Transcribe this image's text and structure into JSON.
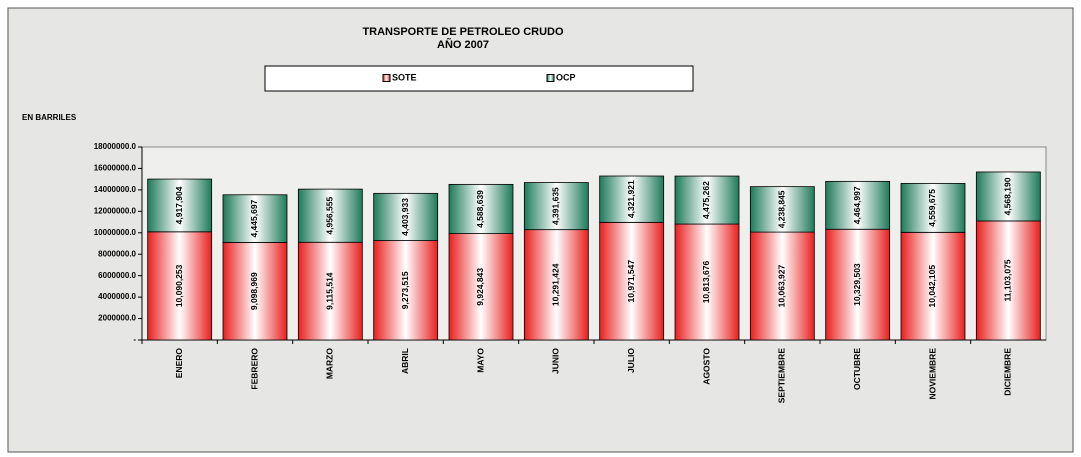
{
  "chart_data": {
    "type": "stacked_bar",
    "title": [
      "TRANSPORTE DE  PETROLEO CRUDO",
      "AÑO 2007"
    ],
    "y_label": "EN BARRILES",
    "categories": [
      "ENERO",
      "FEBRERO",
      "MARZO",
      "ABRIL",
      "MAYO",
      "JUNIO",
      "JULIO",
      "AGOSTO",
      "SEPTIEMBRE",
      "OCTUBRE",
      "NOVIEMBRE",
      "DICIEMBRE"
    ],
    "series": [
      {
        "name": "SOTE",
        "color": "#e8201e",
        "values": [
          10090253,
          9098969,
          9115514,
          9273515,
          9924843,
          10291424,
          10971547,
          10813676,
          10063927,
          10329503,
          10042105,
          11103075
        ],
        "value_labels": [
          "10,090,253",
          "9,098,969",
          "9,115,514",
          "9,273,515",
          "9,924,843",
          "10,291,424",
          "10,971,547",
          "10,813,676",
          "10,063,927",
          "10,329,503",
          "10,042,105",
          "11,103,075"
        ]
      },
      {
        "name": "OCP",
        "color": "#1e7a5a",
        "values": [
          4917904,
          4445697,
          4956555,
          4403933,
          4588639,
          4391635,
          4321921,
          4475262,
          4238845,
          4464997,
          4559675,
          4568190
        ],
        "value_labels": [
          "4,917,904",
          "4,445,697",
          "4,956,555",
          "4,403,933",
          "4,588,639",
          "4,391,635",
          "4,321,921",
          "4,475,262",
          "4,238,845",
          "4,464,997",
          "4,559,675",
          "4,568,190"
        ]
      }
    ],
    "ylim": [
      0,
      18000000
    ],
    "yticks": [
      {
        "value": 0,
        "label": "-"
      },
      {
        "value": 2000000,
        "label": "2000000.0"
      },
      {
        "value": 4000000,
        "label": "4000000.0"
      },
      {
        "value": 6000000,
        "label": "6000000.0"
      },
      {
        "value": 8000000,
        "label": "8000000.0"
      },
      {
        "value": 10000000,
        "label": "10000000.0"
      },
      {
        "value": 12000000,
        "label": "12000000.0"
      },
      {
        "value": 14000000,
        "label": "14000000.0"
      },
      {
        "value": 16000000,
        "label": "16000000.0"
      },
      {
        "value": 18000000,
        "label": "18000000.0"
      }
    ]
  }
}
